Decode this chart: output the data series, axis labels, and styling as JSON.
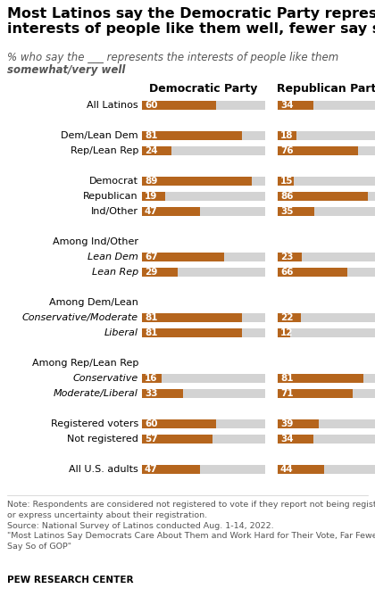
{
  "title": "Most Latinos say the Democratic Party represents the\ninterests of people like them well, fewer say so of GOP",
  "subtitle_line1": "% who say the ___ represents the interests of people like them",
  "subtitle_line2": "somewhat/very well",
  "col1_header": "Democratic Party",
  "col2_header": "Republican Party",
  "rows": [
    {
      "label": "All Latinos",
      "italic": false,
      "header": false,
      "dem": 60,
      "rep": 34
    },
    {
      "label": "",
      "italic": false,
      "header": false,
      "dem": null,
      "rep": null
    },
    {
      "label": "Dem/Lean Dem",
      "italic": false,
      "header": false,
      "dem": 81,
      "rep": 18
    },
    {
      "label": "Rep/Lean Rep",
      "italic": false,
      "header": false,
      "dem": 24,
      "rep": 76
    },
    {
      "label": "",
      "italic": false,
      "header": false,
      "dem": null,
      "rep": null
    },
    {
      "label": "Democrat",
      "italic": false,
      "header": false,
      "dem": 89,
      "rep": 15
    },
    {
      "label": "Republican",
      "italic": false,
      "header": false,
      "dem": 19,
      "rep": 86
    },
    {
      "label": "Ind/Other",
      "italic": false,
      "header": false,
      "dem": 47,
      "rep": 35
    },
    {
      "label": "",
      "italic": false,
      "header": false,
      "dem": null,
      "rep": null
    },
    {
      "label": "Among Ind/Other",
      "italic": false,
      "header": true,
      "dem": null,
      "rep": null
    },
    {
      "label": "Lean Dem",
      "italic": true,
      "header": false,
      "dem": 67,
      "rep": 23
    },
    {
      "label": "Lean Rep",
      "italic": true,
      "header": false,
      "dem": 29,
      "rep": 66
    },
    {
      "label": "",
      "italic": false,
      "header": false,
      "dem": null,
      "rep": null
    },
    {
      "label": "Among Dem/Lean",
      "italic": false,
      "header": true,
      "dem": null,
      "rep": null
    },
    {
      "label": "Conservative/Moderate",
      "italic": true,
      "header": false,
      "dem": 81,
      "rep": 22
    },
    {
      "label": "Liberal",
      "italic": true,
      "header": false,
      "dem": 81,
      "rep": 12
    },
    {
      "label": "",
      "italic": false,
      "header": false,
      "dem": null,
      "rep": null
    },
    {
      "label": "Among Rep/Lean Rep",
      "italic": false,
      "header": true,
      "dem": null,
      "rep": null
    },
    {
      "label": "Conservative",
      "italic": true,
      "header": false,
      "dem": 16,
      "rep": 81
    },
    {
      "label": "Moderate/Liberal",
      "italic": true,
      "header": false,
      "dem": 33,
      "rep": 71
    },
    {
      "label": "",
      "italic": false,
      "header": false,
      "dem": null,
      "rep": null
    },
    {
      "label": "Registered voters",
      "italic": false,
      "header": false,
      "dem": 60,
      "rep": 39
    },
    {
      "label": "Not registered",
      "italic": false,
      "header": false,
      "dem": 57,
      "rep": 34
    },
    {
      "label": "",
      "italic": false,
      "header": false,
      "dem": null,
      "rep": null
    },
    {
      "label": "All U.S. adults",
      "italic": false,
      "header": false,
      "dem": 47,
      "rep": 44
    }
  ],
  "bar_color": "#b5651d",
  "bg_color": "#d3d3d3",
  "bar_max": 100,
  "note": "Note: Respondents are considered not registered to vote if they report not being registered\nor express uncertainty about their registration.\nSource: National Survey of Latinos conducted Aug. 1-14, 2022.\n\"Most Latinos Say Democrats Care About Them and Work Hard for Their Vote, Far Fewer\nSay So of GOP\"",
  "footer": "PEW RESEARCH CENTER",
  "title_fontsize": 11.5,
  "subtitle_fontsize": 8.5,
  "label_fontsize": 8.0,
  "header_label_fontsize": 8.0,
  "col_header_fontsize": 9.0,
  "value_fontsize": 7.5,
  "note_fontsize": 6.8,
  "footer_fontsize": 7.5
}
